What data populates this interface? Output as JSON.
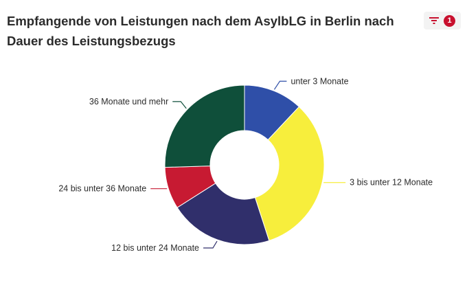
{
  "header": {
    "title": "Empfangende von Leistungen nach dem AsylbLG in Berlin nach Dauer des Leistungsbezugs",
    "filter_icon": "filter-icon",
    "filter_count": "1"
  },
  "colors": {
    "accent": "#c8102e"
  },
  "chart_data": {
    "type": "pie",
    "donut": true,
    "title": "Empfangende von Leistungen nach dem AsylbLG in Berlin nach Dauer des Leistungsbezugs",
    "categories": [
      "unter 3 Monate",
      "3 bis unter 12 Monate",
      "12 bis unter 24 Monate",
      "24 bis unter 36 Monate",
      "36 Monate und mehr"
    ],
    "values": [
      12,
      33,
      21,
      8.5,
      25.5
    ],
    "colors": [
      "#2f4fa8",
      "#f7ee3c",
      "#302f6b",
      "#c71a32",
      "#0f4f3a"
    ],
    "legend": "none",
    "data_labels": "outside"
  }
}
